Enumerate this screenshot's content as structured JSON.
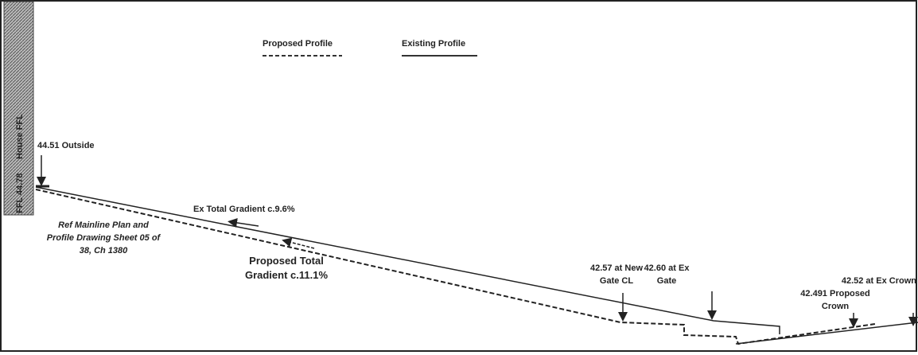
{
  "legend": {
    "proposed": "Proposed Profile",
    "existing": "Existing Profile"
  },
  "house": {
    "level": "FFL 44.78",
    "label": "House FFL"
  },
  "labels": {
    "outside": "44.51 Outside",
    "ex_gradient": "Ex Total Gradient c.9.6%",
    "reference": [
      "Ref Mainline Plan and",
      "Profile Drawing Sheet 05 of",
      "38, Ch 1380"
    ],
    "proposed_gradient": [
      "Proposed Total",
      "Gradient c.11.1%"
    ],
    "new_gate": [
      "42.57 at New",
      "Gate CL"
    ],
    "ex_gate": [
      "42.60 at Ex",
      "Gate"
    ],
    "ex_crown": "42.52 at Ex Crown",
    "proposed_crown": [
      "42.491 Proposed",
      "Crown"
    ]
  }
}
